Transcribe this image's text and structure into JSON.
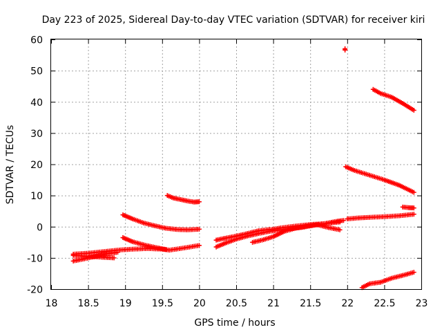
{
  "chart_data": {
    "type": "scatter",
    "title": "Day 223 of 2025, Sidereal Day-to-day VTEC variation (SDTVAR) for receiver kiri",
    "xlabel": "GPS time / hours",
    "ylabel": "SDTVAR / TECUs",
    "xlim": [
      18,
      23
    ],
    "ylim": [
      -20,
      60
    ],
    "xticks": [
      "18",
      "18.5",
      "19",
      "19.5",
      "20",
      "20.5",
      "21",
      "21.5",
      "22",
      "22.5",
      "23"
    ],
    "yticks": [
      "-20",
      "-10",
      "0",
      "10",
      "20",
      "30",
      "40",
      "50",
      "60"
    ],
    "grid": true,
    "marker": "plus",
    "color": "#ff0000",
    "series": [
      {
        "points": [
          [
            18.3,
            -11
          ],
          [
            18.45,
            -10.3
          ],
          [
            18.6,
            -9.5
          ],
          [
            18.75,
            -8.7
          ],
          [
            18.9,
            -8.2
          ]
        ]
      },
      {
        "points": [
          [
            18.3,
            -9.2
          ],
          [
            18.5,
            -9.5
          ],
          [
            18.7,
            -9.8
          ],
          [
            18.85,
            -10
          ]
        ]
      },
      {
        "points": [
          [
            18.3,
            -8.8
          ],
          [
            18.5,
            -8.5
          ],
          [
            18.7,
            -8
          ],
          [
            18.9,
            -7.5
          ],
          [
            19.1,
            -7.2
          ],
          [
            19.3,
            -7
          ],
          [
            19.5,
            -7.2
          ],
          [
            19.6,
            -7.5
          ],
          [
            19.8,
            -6.8
          ],
          [
            20,
            -6
          ]
        ]
      },
      {
        "points": [
          [
            18.97,
            -3.5
          ],
          [
            19.1,
            -4.8
          ],
          [
            19.25,
            -5.8
          ],
          [
            19.4,
            -6.6
          ],
          [
            19.55,
            -7.3
          ]
        ]
      },
      {
        "points": [
          [
            18.97,
            3.8
          ],
          [
            19.1,
            2.5
          ],
          [
            19.25,
            1.2
          ],
          [
            19.4,
            0.3
          ],
          [
            19.55,
            -0.5
          ],
          [
            19.7,
            -0.9
          ],
          [
            19.85,
            -1
          ],
          [
            20,
            -0.8
          ]
        ]
      },
      {
        "points": [
          [
            19.57,
            10
          ],
          [
            19.65,
            9.2
          ],
          [
            19.75,
            8.7
          ],
          [
            19.85,
            8.2
          ],
          [
            19.93,
            7.9
          ],
          [
            20,
            8
          ]
        ]
      },
      {
        "points": [
          [
            20.23,
            -6.5
          ],
          [
            20.35,
            -5.3
          ],
          [
            20.5,
            -4
          ],
          [
            20.65,
            -3
          ],
          [
            20.8,
            -2.2
          ],
          [
            20.95,
            -1.5
          ],
          [
            21.1,
            -1
          ],
          [
            21.25,
            -0.6
          ],
          [
            21.4,
            -0.2
          ],
          [
            21.55,
            0.5
          ],
          [
            21.7,
            1
          ],
          [
            21.85,
            1.7
          ],
          [
            21.95,
            2
          ]
        ]
      },
      {
        "points": [
          [
            20.23,
            -4.3
          ],
          [
            20.35,
            -3.7
          ],
          [
            20.5,
            -3
          ],
          [
            20.65,
            -2.2
          ],
          [
            20.8,
            -1.3
          ],
          [
            20.95,
            -0.9
          ]
        ]
      },
      {
        "points": [
          [
            20.72,
            -5
          ],
          [
            20.85,
            -4.3
          ],
          [
            21,
            -3.2
          ],
          [
            21.15,
            -1.5
          ],
          [
            21.3,
            -0.5
          ],
          [
            21.45,
            0.2
          ],
          [
            21.6,
            0.6
          ],
          [
            21.75,
            -0.3
          ],
          [
            21.9,
            -1
          ]
        ]
      },
      {
        "points": [
          [
            20.95,
            -1
          ],
          [
            21.1,
            -0.4
          ],
          [
            21.3,
            0.2
          ],
          [
            21.5,
            0.7
          ],
          [
            21.7,
            1
          ],
          [
            21.9,
            1.5
          ]
        ]
      },
      {
        "points": [
          [
            22,
            2.5
          ],
          [
            22.15,
            2.8
          ],
          [
            22.3,
            3
          ],
          [
            22.5,
            3.2
          ],
          [
            22.7,
            3.5
          ],
          [
            22.9,
            4
          ]
        ]
      },
      {
        "points": [
          [
            22.75,
            6.3
          ],
          [
            22.83,
            6.1
          ],
          [
            22.9,
            6
          ]
        ]
      },
      {
        "points": [
          [
            21.97,
            57
          ],
          [
            21.97,
            56.6
          ]
        ]
      },
      {
        "points": [
          [
            22.35,
            44
          ],
          [
            22.45,
            42.7
          ],
          [
            22.6,
            41.5
          ],
          [
            22.75,
            39.5
          ],
          [
            22.9,
            37.3
          ]
        ]
      },
      {
        "points": [
          [
            21.98,
            19.2
          ],
          [
            22.1,
            18
          ],
          [
            22.3,
            16.5
          ],
          [
            22.5,
            15
          ],
          [
            22.7,
            13.3
          ],
          [
            22.9,
            11
          ]
        ]
      },
      {
        "points": [
          [
            22.2,
            -19.5
          ],
          [
            22.3,
            -18.3
          ],
          [
            22.45,
            -17.8
          ],
          [
            22.6,
            -16.5
          ],
          [
            22.75,
            -15.6
          ],
          [
            22.9,
            -14.6
          ]
        ]
      }
    ]
  }
}
